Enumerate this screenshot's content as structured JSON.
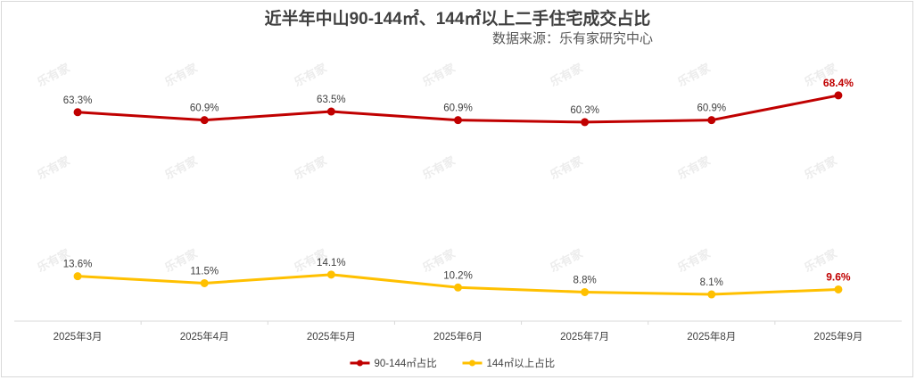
{
  "watermark_text": "乐有家",
  "chart_data": {
    "type": "line",
    "title": "近半年中山90-144㎡、144㎡以上二手住宅成交占比",
    "subtitle": "数据来源：乐有家研究中心",
    "categories": [
      "2025年3月",
      "2025年4月",
      "2025年5月",
      "2025年6月",
      "2025年7月",
      "2025年8月",
      "2025年9月"
    ],
    "series": [
      {
        "name": "90-144㎡占比",
        "color": "#c00000",
        "values": [
          63.3,
          60.9,
          63.5,
          60.9,
          60.3,
          60.9,
          68.4
        ],
        "labels": [
          "63.3%",
          "60.9%",
          "63.5%",
          "60.9%",
          "60.3%",
          "60.9%",
          "68.4%"
        ]
      },
      {
        "name": "144㎡以上占比",
        "color": "#ffc000",
        "values": [
          13.6,
          11.5,
          14.1,
          10.2,
          8.8,
          8.1,
          9.6
        ],
        "labels": [
          "13.6%",
          "11.5%",
          "14.1%",
          "10.2%",
          "8.8%",
          "8.1%",
          "9.6%"
        ]
      }
    ],
    "ylim": [
      0,
      80
    ],
    "grid": false,
    "legend_position": "bottom-center",
    "last_label_highlight": true
  }
}
